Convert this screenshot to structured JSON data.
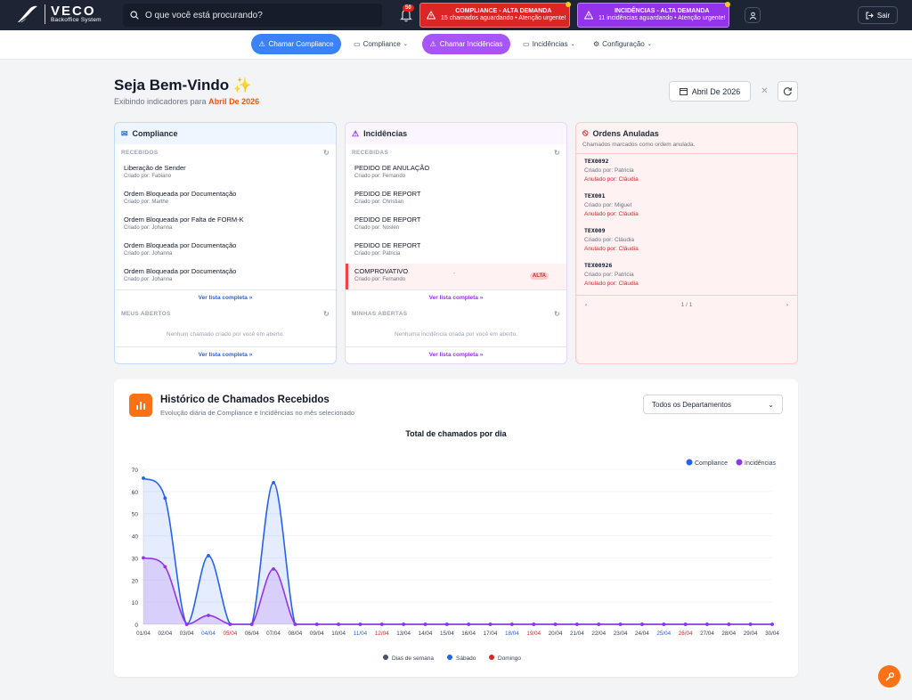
{
  "header": {
    "brand": "VECO",
    "brand_sub": "Backoffice System",
    "search_placeholder": "O que você está procurando?",
    "notification_count": "50",
    "alert_compliance": {
      "title": "COMPLIANCE - ALTA DEMANDA",
      "text": "15 chamados aguardando • Atenção urgente!"
    },
    "alert_incidencias": {
      "title": "INCIDÊNCIAS - ALTA DEMANDA",
      "text": "11 incidências aguardando • Atenção urgente!"
    },
    "logout_label": "Sair"
  },
  "nav": {
    "chamar_compliance": "Chamar Compliance",
    "compliance": "Compliance",
    "chamar_incidencias": "Chamar Incidências",
    "incidencias": "Incidências",
    "configuracao": "Configuração"
  },
  "welcome": {
    "title": "Seja Bem-Vindo ✨",
    "subtitle_prefix": "Exibindo indicadores para",
    "period": "Abril De 2026",
    "date_button": "Abril De 2026"
  },
  "compliance_card": {
    "title": "Compliance",
    "received_label": "RECEBIDOS",
    "items": [
      {
        "title": "Liberação de Sender",
        "creator": "Criado por: Fabiano"
      },
      {
        "title": "Ordem Bloqueada por Documentação",
        "creator": "Criado por: Marthe"
      },
      {
        "title": "Ordem Bloqueada por Falta de FORM-K",
        "creator": "Criado por: Johanna"
      },
      {
        "title": "Ordem Bloqueada por Documentação",
        "creator": "Criado por: Johanna"
      },
      {
        "title": "Ordem Bloqueada por Documentação",
        "creator": "Criado por: Johanna"
      }
    ],
    "see_full": "Ver lista completa »",
    "open_label": "MEUS ABERTOS",
    "empty": "Nenhum chamado criado por você em aberto.",
    "see_full_2": "Ver lista completa »"
  },
  "incidencias_card": {
    "title": "Incidências",
    "received_label": "RECEBIDAS",
    "items": [
      {
        "title": "PEDIDO DE ANULAÇÃO",
        "creator": "Criado por: Fernando"
      },
      {
        "title": "PEDIDO DE REPORT",
        "creator": "Criado por: Christian"
      },
      {
        "title": "PEDIDO DE REPORT",
        "creator": "Criado por: Noslen"
      },
      {
        "title": "PEDIDO DE REPORT",
        "creator": "Criado por: Patricia"
      },
      {
        "title": "COMPROVATIVO",
        "creator": "Criado por: Fernando",
        "dash": "-",
        "badge": "ALTA"
      }
    ],
    "see_full": "Ver lista completa »",
    "open_label": "MINHAS ABERTAS",
    "empty": "Nenhuma incidência criada por você em aberto.",
    "see_full_2": "Ver lista completa »"
  },
  "anuladas_card": {
    "title": "Ordens Anuladas",
    "desc": "Chamados marcados como ordem anulada.",
    "items": [
      {
        "code": "TEX0092",
        "creator": "Criado por: Patricia",
        "cancelled": "Anulado por: Cláudia"
      },
      {
        "code": "TEX001",
        "creator": "Criado por: Miguel",
        "cancelled": "Anulado por: Cláudia"
      },
      {
        "code": "TEX009",
        "creator": "Criado por: Cláudia",
        "cancelled": "Anulado por: Cláudia"
      },
      {
        "code": "TEX00926",
        "creator": "Criado por: Patricia",
        "cancelled": "Anulado por: Cláudia"
      }
    ],
    "pager": "1 / 1",
    "prev": "‹",
    "next": "›"
  },
  "history": {
    "title": "Histórico de Chamados Recebidos",
    "subtitle": "Evolução diária de Compliance e Incidências no mês selecionado",
    "department": "Todos os Departamentos"
  },
  "chart_data": {
    "type": "area",
    "title": "Total de chamados por dia",
    "ylim": [
      0,
      70
    ],
    "yticks": [
      0,
      10,
      20,
      30,
      40,
      50,
      60,
      70
    ],
    "x": [
      "01/04",
      "02/04",
      "03/04",
      "04/04",
      "05/04",
      "06/04",
      "07/04",
      "08/04",
      "09/04",
      "10/04",
      "11/04",
      "12/04",
      "13/04",
      "14/04",
      "15/04",
      "16/04",
      "17/04",
      "18/04",
      "19/04",
      "20/04",
      "21/04",
      "22/04",
      "23/04",
      "24/04",
      "25/04",
      "26/04",
      "27/04",
      "28/04",
      "29/04",
      "30/04"
    ],
    "x_day_types": [
      "w",
      "w",
      "w",
      "s",
      "d",
      "w",
      "w",
      "w",
      "w",
      "w",
      "s",
      "d",
      "w",
      "w",
      "w",
      "w",
      "w",
      "s",
      "d",
      "w",
      "w",
      "w",
      "w",
      "w",
      "s",
      "d",
      "w",
      "w",
      "w",
      "w"
    ],
    "series": [
      {
        "name": "Compliance",
        "color": "#2563eb",
        "values": [
          66,
          57,
          0,
          31,
          0,
          0,
          64,
          0,
          0,
          0,
          0,
          0,
          0,
          0,
          0,
          0,
          0,
          0,
          0,
          0,
          0,
          0,
          0,
          0,
          0,
          0,
          0,
          0,
          0,
          0
        ]
      },
      {
        "name": "Incidências",
        "color": "#9333ea",
        "values": [
          30,
          26,
          0,
          4,
          0,
          0,
          25,
          0,
          0,
          0,
          0,
          0,
          0,
          0,
          0,
          0,
          0,
          0,
          0,
          0,
          0,
          0,
          0,
          0,
          0,
          0,
          0,
          0,
          0,
          0
        ]
      }
    ],
    "legend_position": "top-right",
    "day_legend": [
      {
        "label": "Dias de semana",
        "color": "#4b5563"
      },
      {
        "label": "Sábado",
        "color": "#2563eb"
      },
      {
        "label": "Domingo",
        "color": "#dc2626"
      }
    ],
    "grid": true
  }
}
